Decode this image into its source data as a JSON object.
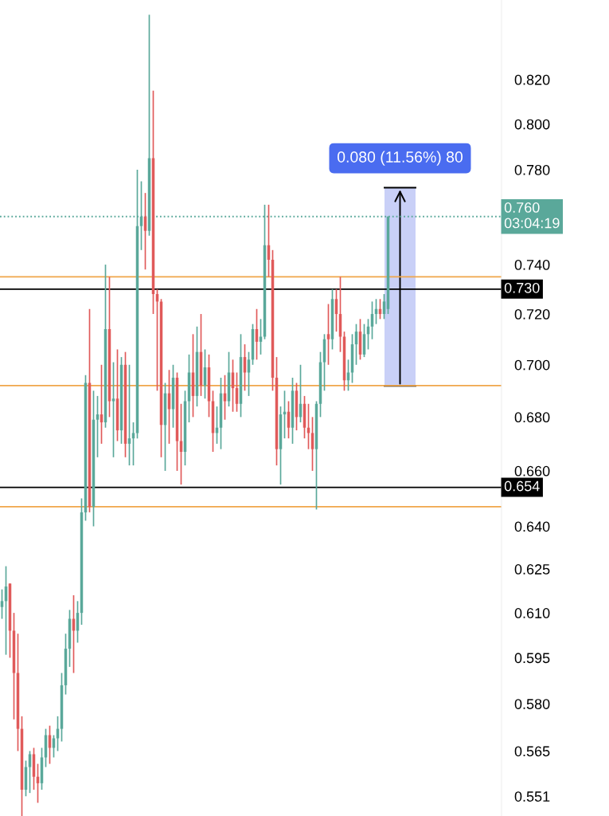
{
  "chart_data": {
    "type": "candlestick",
    "log": "y",
    "categories": [
      null,
      null,
      null,
      null,
      null,
      null,
      null,
      null,
      null,
      null,
      null,
      null,
      null,
      null,
      null,
      null,
      null,
      null,
      null,
      null,
      null,
      null,
      null,
      null,
      null,
      null,
      null,
      null,
      null,
      null,
      null,
      null,
      null,
      null,
      null,
      null,
      null,
      null,
      null,
      null,
      null,
      null,
      null,
      null,
      null,
      null,
      null,
      null,
      null,
      null,
      null,
      null,
      null,
      null,
      null,
      null,
      null,
      null,
      null,
      null,
      null,
      null,
      null,
      null,
      null,
      null,
      null,
      null,
      null,
      null,
      null,
      null,
      null,
      null,
      null,
      null,
      null,
      null,
      null,
      null,
      null,
      null,
      null,
      null,
      null,
      null,
      null,
      null,
      null,
      null,
      null,
      null,
      null,
      null,
      null,
      null,
      null,
      null,
      null,
      null,
      null,
      null,
      null,
      null,
      null,
      null,
      null,
      null,
      null,
      null,
      null,
      null,
      null,
      null,
      null,
      null,
      null,
      null,
      null,
      null,
      null,
      null,
      null,
      null,
      null,
      null
    ],
    "ohlc": [
      [
        0.612,
        0.618,
        0.608,
        0.614
      ],
      [
        0.614,
        0.626,
        0.596,
        0.619
      ],
      [
        0.62,
        0.62,
        0.595,
        0.604
      ],
      [
        0.604,
        0.61,
        0.575,
        0.59
      ],
      [
        0.59,
        0.603,
        0.565,
        0.572
      ],
      [
        0.572,
        0.576,
        0.545,
        0.553
      ],
      [
        0.553,
        0.562,
        0.551,
        0.56
      ],
      [
        0.56,
        0.565,
        0.552,
        0.564
      ],
      [
        0.564,
        0.566,
        0.553,
        0.557
      ],
      [
        0.557,
        0.561,
        0.549,
        0.555
      ],
      [
        0.555,
        0.566,
        0.553,
        0.563
      ],
      [
        0.563,
        0.572,
        0.56,
        0.57
      ],
      [
        0.57,
        0.573,
        0.561,
        0.566
      ],
      [
        0.566,
        0.57,
        0.563,
        0.569
      ],
      [
        0.569,
        0.576,
        0.565,
        0.572
      ],
      [
        0.572,
        0.59,
        0.568,
        0.586
      ],
      [
        0.586,
        0.603,
        0.583,
        0.598
      ],
      [
        0.598,
        0.611,
        0.592,
        0.608
      ],
      [
        0.608,
        0.616,
        0.59,
        0.604
      ],
      [
        0.604,
        0.614,
        0.6,
        0.61
      ],
      [
        0.61,
        0.65,
        0.606,
        0.645
      ],
      [
        0.645,
        0.696,
        0.642,
        0.693
      ],
      [
        0.693,
        0.722,
        0.645,
        0.647
      ],
      [
        0.647,
        0.69,
        0.64,
        0.679
      ],
      [
        0.679,
        0.688,
        0.665,
        0.681
      ],
      [
        0.681,
        0.7,
        0.67,
        0.678
      ],
      [
        0.678,
        0.74,
        0.676,
        0.714
      ],
      [
        0.714,
        0.735,
        0.68,
        0.686
      ],
      [
        0.686,
        0.701,
        0.665,
        0.687
      ],
      [
        0.687,
        0.706,
        0.671,
        0.675
      ],
      [
        0.675,
        0.703,
        0.67,
        0.7
      ],
      [
        0.7,
        0.705,
        0.665,
        0.67
      ],
      [
        0.67,
        0.7,
        0.662,
        0.672
      ],
      [
        0.672,
        0.678,
        0.662,
        0.674
      ],
      [
        0.674,
        0.78,
        0.672,
        0.756
      ],
      [
        0.756,
        0.775,
        0.746,
        0.76
      ],
      [
        0.76,
        0.77,
        0.738,
        0.754
      ],
      [
        0.754,
        0.85,
        0.752,
        0.785
      ],
      [
        0.785,
        0.815,
        0.72,
        0.728
      ],
      [
        0.728,
        0.73,
        0.69,
        0.725
      ],
      [
        0.725,
        0.726,
        0.665,
        0.677
      ],
      [
        0.677,
        0.693,
        0.66,
        0.689
      ],
      [
        0.689,
        0.698,
        0.67,
        0.683
      ],
      [
        0.683,
        0.7,
        0.676,
        0.695
      ],
      [
        0.695,
        0.697,
        0.66,
        0.671
      ],
      [
        0.671,
        0.685,
        0.655,
        0.667
      ],
      [
        0.667,
        0.69,
        0.662,
        0.686
      ],
      [
        0.686,
        0.704,
        0.678,
        0.697
      ],
      [
        0.697,
        0.712,
        0.68,
        0.688
      ],
      [
        0.688,
        0.715,
        0.684,
        0.705
      ],
      [
        0.705,
        0.72,
        0.688,
        0.692
      ],
      [
        0.692,
        0.706,
        0.687,
        0.699
      ],
      [
        0.699,
        0.704,
        0.68,
        0.686
      ],
      [
        0.686,
        0.69,
        0.667,
        0.674
      ],
      [
        0.674,
        0.684,
        0.67,
        0.676
      ],
      [
        0.676,
        0.695,
        0.668,
        0.689
      ],
      [
        0.689,
        0.696,
        0.679,
        0.686
      ],
      [
        0.686,
        0.705,
        0.684,
        0.697
      ],
      [
        0.697,
        0.702,
        0.682,
        0.691
      ],
      [
        0.691,
        0.697,
        0.682,
        0.685
      ],
      [
        0.685,
        0.712,
        0.68,
        0.703
      ],
      [
        0.703,
        0.708,
        0.69,
        0.697
      ],
      [
        0.697,
        0.705,
        0.688,
        0.702
      ],
      [
        0.702,
        0.716,
        0.7,
        0.714
      ],
      [
        0.714,
        0.722,
        0.702,
        0.709
      ],
      [
        0.709,
        0.718,
        0.704,
        0.711
      ],
      [
        0.711,
        0.765,
        0.71,
        0.748
      ],
      [
        0.748,
        0.765,
        0.735,
        0.742
      ],
      [
        0.742,
        0.746,
        0.69,
        0.695
      ],
      [
        0.695,
        0.703,
        0.662,
        0.668
      ],
      [
        0.668,
        0.684,
        0.655,
        0.681
      ],
      [
        0.681,
        0.69,
        0.672,
        0.682
      ],
      [
        0.682,
        0.686,
        0.672,
        0.676
      ],
      [
        0.676,
        0.695,
        0.67,
        0.69
      ],
      [
        0.69,
        0.693,
        0.675,
        0.68
      ],
      [
        0.68,
        0.7,
        0.678,
        0.685
      ],
      [
        0.685,
        0.688,
        0.672,
        0.676
      ],
      [
        0.676,
        0.685,
        0.668,
        0.674
      ],
      [
        0.674,
        0.68,
        0.66,
        0.668
      ],
      [
        0.668,
        0.686,
        0.646,
        0.685
      ],
      [
        0.685,
        0.705,
        0.68,
        0.701
      ],
      [
        0.701,
        0.712,
        0.69,
        0.71
      ],
      [
        0.712,
        0.724,
        0.7,
        0.71
      ],
      [
        0.71,
        0.73,
        0.706,
        0.726
      ],
      [
        0.726,
        0.73,
        0.713,
        0.72
      ],
      [
        0.72,
        0.735,
        0.705,
        0.711
      ],
      [
        0.711,
        0.713,
        0.69,
        0.694
      ],
      [
        0.694,
        0.702,
        0.69,
        0.697
      ],
      [
        0.697,
        0.712,
        0.693,
        0.708
      ],
      [
        0.708,
        0.716,
        0.7,
        0.713
      ],
      [
        0.713,
        0.718,
        0.702,
        0.704
      ],
      [
        0.704,
        0.716,
        0.703,
        0.712
      ],
      [
        0.712,
        0.718,
        0.706,
        0.715
      ],
      [
        0.715,
        0.725,
        0.71,
        0.72
      ],
      [
        0.72,
        0.726,
        0.716,
        0.722
      ],
      [
        0.722,
        0.726,
        0.718,
        0.72
      ],
      [
        0.72,
        0.728,
        0.718,
        0.725
      ],
      [
        0.722,
        0.76,
        0.72,
        0.76
      ],
      null,
      null,
      null,
      null,
      null,
      null,
      null,
      null,
      null,
      null,
      null,
      null,
      null,
      null,
      null,
      null,
      null,
      null,
      null,
      null,
      null,
      null,
      null,
      null,
      null,
      null,
      null,
      null
    ],
    "ref_lines": [
      {
        "axis": "y",
        "value": 0.76,
        "label": "0.760\n03:04:19",
        "color": "#5aa89a",
        "line_style": "dotted"
      },
      {
        "axis": "y",
        "value": 0.73,
        "label": "0.730",
        "color": "#000000"
      },
      {
        "axis": "y",
        "value": 0.654,
        "label": "0.654",
        "color": "#000000"
      },
      {
        "axis": "y",
        "value": 0.735,
        "color": "#f0a64a"
      },
      {
        "axis": "y",
        "value": 0.692,
        "color": "#f0a64a"
      },
      {
        "axis": "y",
        "value": 0.647,
        "color": "#f0a64a"
      }
    ],
    "annotations": [
      "0.080 (11.56%) 80"
    ],
    "ylim": [
      0.545,
      0.857
    ],
    "yticks": [
      {
        "value": 0.551,
        "label": "0.551"
      },
      {
        "value": 0.565,
        "label": "0.565"
      },
      {
        "value": 0.58,
        "label": "0.580"
      },
      {
        "value": 0.595,
        "label": "0.595"
      },
      {
        "value": 0.61,
        "label": "0.610"
      },
      {
        "value": 0.625,
        "label": "0.625"
      },
      {
        "value": 0.64,
        "label": "0.640"
      },
      {
        "value": 0.66,
        "label": "0.660"
      },
      {
        "value": 0.68,
        "label": "0.680"
      },
      {
        "value": 0.7,
        "label": "0.700"
      },
      {
        "value": 0.72,
        "label": "0.720"
      },
      {
        "value": 0.74,
        "label": "0.740"
      },
      {
        "value": 0.78,
        "label": "0.780"
      },
      {
        "value": 0.8,
        "label": "0.800"
      },
      {
        "value": 0.82,
        "label": "0.820"
      }
    ],
    "tick_labels": "y",
    "grid": false,
    "legend": false
  }
}
